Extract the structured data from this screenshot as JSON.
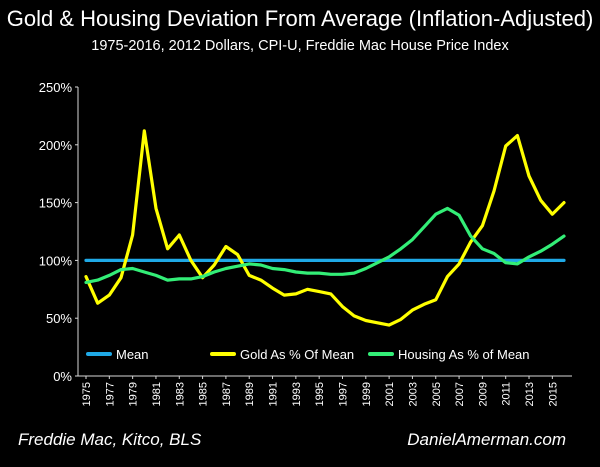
{
  "chart_data": {
    "type": "line",
    "title": "Gold & Housing Deviation From Average (Inflation-Adjusted)",
    "subtitle": "1975-2016, 2012 Dollars, CPI-U, Freddie Mac House Price Index",
    "xlabel": "",
    "ylabel": "",
    "ylim": [
      0,
      250
    ],
    "yticks": [
      "0%",
      "50%",
      "100%",
      "150%",
      "200%",
      "250%"
    ],
    "x": [
      1975,
      1976,
      1977,
      1978,
      1979,
      1980,
      1981,
      1982,
      1983,
      1984,
      1985,
      1986,
      1987,
      1988,
      1989,
      1990,
      1991,
      1992,
      1993,
      1994,
      1995,
      1996,
      1997,
      1998,
      1999,
      2000,
      2001,
      2002,
      2003,
      2004,
      2005,
      2006,
      2007,
      2008,
      2009,
      2010,
      2011,
      2012,
      2013,
      2014,
      2015,
      2016
    ],
    "xtick_labels": [
      "1975",
      "1977",
      "1979",
      "1981",
      "1983",
      "1985",
      "1987",
      "1989",
      "1991",
      "1993",
      "1995",
      "1997",
      "1999",
      "2001",
      "2003",
      "2005",
      "2007",
      "2009",
      "2011",
      "2013",
      "2015"
    ],
    "grid": false,
    "legend_position": "bottom",
    "series": [
      {
        "name": "Mean",
        "color": "#1fa9e6",
        "values": [
          100,
          100,
          100,
          100,
          100,
          100,
          100,
          100,
          100,
          100,
          100,
          100,
          100,
          100,
          100,
          100,
          100,
          100,
          100,
          100,
          100,
          100,
          100,
          100,
          100,
          100,
          100,
          100,
          100,
          100,
          100,
          100,
          100,
          100,
          100,
          100,
          100,
          100,
          100,
          100,
          100,
          100
        ]
      },
      {
        "name": "Gold As % Of Mean",
        "color": "#ffff00",
        "values": [
          86,
          63,
          70,
          85,
          122,
          212,
          145,
          110,
          122,
          100,
          85,
          96,
          112,
          105,
          87,
          83,
          76,
          70,
          71,
          75,
          73,
          71,
          60,
          52,
          48,
          46,
          44,
          49,
          57,
          62,
          66,
          86,
          97,
          116,
          130,
          160,
          199,
          208,
          173,
          152,
          140,
          150
        ]
      },
      {
        "name": "Housing As % of Mean",
        "color": "#33ee77",
        "values": [
          81,
          83,
          87,
          92,
          93,
          90,
          87,
          83,
          84,
          84,
          86,
          90,
          93,
          95,
          97,
          96,
          93,
          92,
          90,
          89,
          89,
          88,
          88,
          89,
          93,
          98,
          103,
          110,
          118,
          129,
          140,
          145,
          139,
          121,
          110,
          106,
          98,
          97,
          103,
          108,
          114,
          121
        ]
      }
    ]
  },
  "footer": {
    "source": "Freddie Mac, Kitco, BLS",
    "site": "DanielAmerman.com"
  }
}
